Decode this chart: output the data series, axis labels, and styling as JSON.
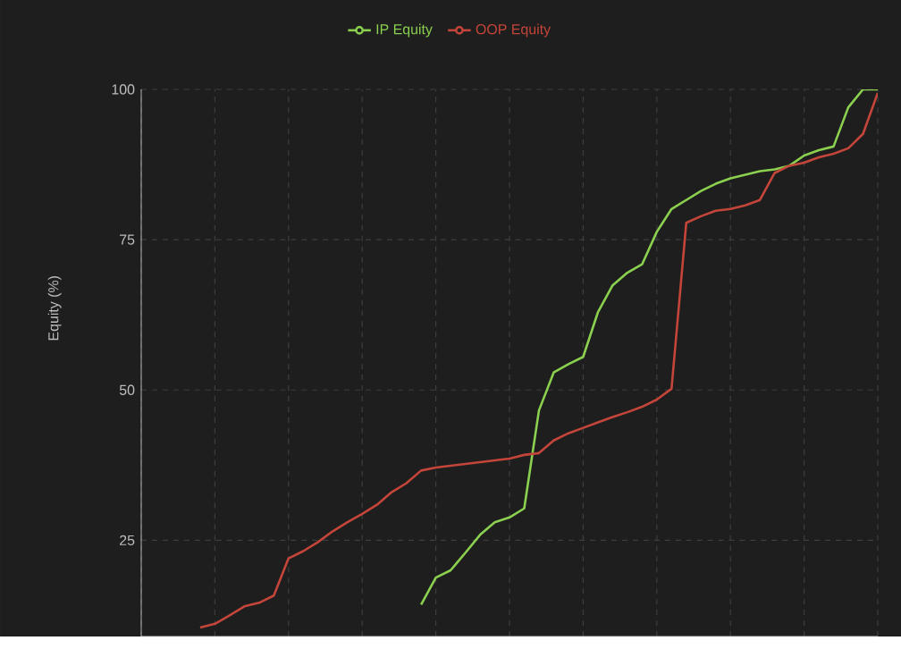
{
  "chart_data": {
    "type": "line",
    "ylabel": "Equity (%)",
    "categories": [
      null,
      null,
      null,
      null,
      null,
      null,
      null,
      null,
      null,
      null,
      null,
      null,
      null,
      null,
      null,
      null,
      null,
      null,
      null,
      null,
      null,
      null,
      null,
      null,
      null,
      null,
      null,
      null,
      null,
      null,
      null,
      null,
      null,
      null,
      null,
      null,
      null,
      null,
      null,
      null,
      null,
      null,
      null,
      null,
      null,
      null,
      null,
      null,
      null,
      null,
      null
    ],
    "series": [
      {
        "name": "IP Equity",
        "color": "#8bd14f",
        "values": [
          null,
          null,
          null,
          null,
          null,
          null,
          null,
          null,
          null,
          null,
          null,
          null,
          null,
          null,
          null,
          null,
          null,
          null,
          null,
          14.3,
          18.8,
          20.0,
          22.9,
          25.9,
          28.0,
          28.8,
          30.3,
          46.6,
          52.9,
          54.3,
          55.5,
          62.9,
          67.4,
          69.5,
          70.9,
          76.3,
          80.1,
          81.6,
          83.1,
          84.3,
          85.2,
          85.8,
          86.4,
          86.7,
          87.3,
          89.0,
          89.9,
          90.5,
          97.0,
          100,
          100
        ]
      },
      {
        "name": "OOP Equity",
        "color": "#c4453a",
        "values": [
          null,
          null,
          null,
          null,
          10.5,
          11.1,
          12.5,
          14.0,
          14.6,
          15.8,
          22.0,
          23.2,
          24.7,
          26.5,
          28.0,
          29.4,
          30.9,
          33.0,
          34.5,
          36.6,
          37.1,
          37.4,
          37.7,
          38.0,
          38.3,
          38.6,
          39.2,
          39.5,
          41.6,
          42.8,
          43.7,
          44.6,
          45.5,
          46.3,
          47.2,
          48.4,
          50.2,
          77.8,
          78.9,
          79.8,
          80.1,
          80.7,
          81.6,
          86.1,
          87.3,
          87.8,
          88.7,
          89.3,
          90.2,
          92.6,
          99.4
        ]
      }
    ],
    "ylim": [
      9,
      100
    ],
    "yticks": [
      25,
      50,
      75,
      100
    ],
    "grid": true,
    "legend": "top",
    "tick_labels": "y",
    "line_style": "solid"
  }
}
